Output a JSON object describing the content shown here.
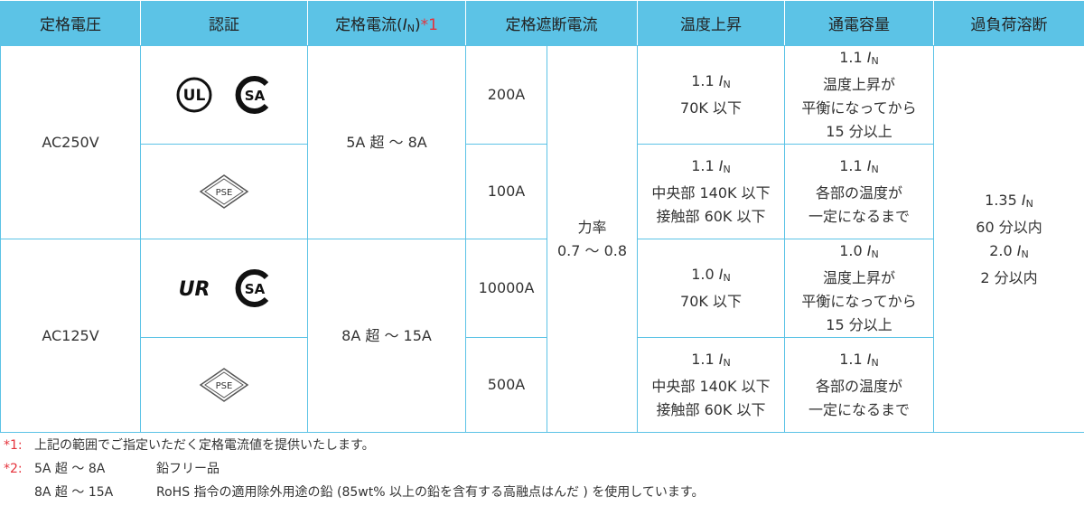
{
  "header": [
    {
      "text": "定格電圧"
    },
    {
      "text": "認証"
    },
    {
      "text": "定格電流(",
      "i": "I",
      "sub": "N",
      "close": ")",
      "note": "*1"
    },
    {
      "text": "定格遮断電流"
    },
    {
      "text": "温度上昇"
    },
    {
      "text": "通電容量"
    },
    {
      "text": "過負荷溶断"
    }
  ],
  "groups": [
    {
      "voltage": "AC250V",
      "current": "5A 超 ～ 8A",
      "rows": [
        {
          "cert": [
            "UL",
            "SA"
          ],
          "breaking": "200A",
          "temp": [
            {
              "num": "1.1",
              "i": "I",
              "sub": "N"
            },
            "70K 以下"
          ],
          "capacity": [
            {
              "num": "1.1",
              "i": "I",
              "sub": "N"
            },
            "温度上昇が",
            "平衡になってから",
            "15 分以上"
          ]
        },
        {
          "cert": [
            "PSE"
          ],
          "breaking": "100A",
          "temp": [
            {
              "num": "1.1",
              "i": "I",
              "sub": "N"
            },
            "中央部 140K 以下",
            "接触部 60K 以下"
          ],
          "capacity": [
            {
              "num": "1.1",
              "i": "I",
              "sub": "N"
            },
            "各部の温度が",
            "一定になるまで"
          ]
        }
      ]
    },
    {
      "voltage": "AC125V",
      "current": "8A 超 ～ 15A",
      "rows": [
        {
          "cert": [
            "UR",
            "SA"
          ],
          "breaking": "10000A",
          "temp": [
            {
              "num": "1.0",
              "i": "I",
              "sub": "N"
            },
            "70K 以下"
          ],
          "capacity": [
            {
              "num": "1.0",
              "i": "I",
              "sub": "N"
            },
            "温度上昇が",
            "平衡になってから",
            "15 分以上"
          ]
        },
        {
          "cert": [
            "PSE"
          ],
          "breaking": "500A",
          "temp": [
            {
              "num": "1.1",
              "i": "I",
              "sub": "N"
            },
            "中央部 140K 以下",
            "接触部 60K 以下"
          ],
          "capacity": [
            {
              "num": "1.1",
              "i": "I",
              "sub": "N"
            },
            "各部の温度が",
            "一定になるまで"
          ]
        }
      ]
    }
  ],
  "power_factor": [
    "力率",
    "0.7 ～ 0.8"
  ],
  "overload": [
    {
      "num": "1.35",
      "i": "I",
      "sub": "N"
    },
    "60 分以内",
    {
      "num": "2.0",
      "i": "I",
      "sub": "N"
    },
    "2 分以内"
  ],
  "notes": [
    {
      "mark": "*1:",
      "lines": [
        [
          "上記の範囲でご指定いただく定格電流値を提供いたします。"
        ]
      ]
    },
    {
      "mark": "*2:",
      "lines": [
        [
          "5A 超 ～ 8A",
          "鉛フリー品"
        ],
        [
          "8A 超 ～ 15A",
          "RoHS 指令の適用除外用途の鉛 (85wt% 以上の鉛を含有する高融点はんだ ) を使用しています。"
        ]
      ]
    }
  ]
}
